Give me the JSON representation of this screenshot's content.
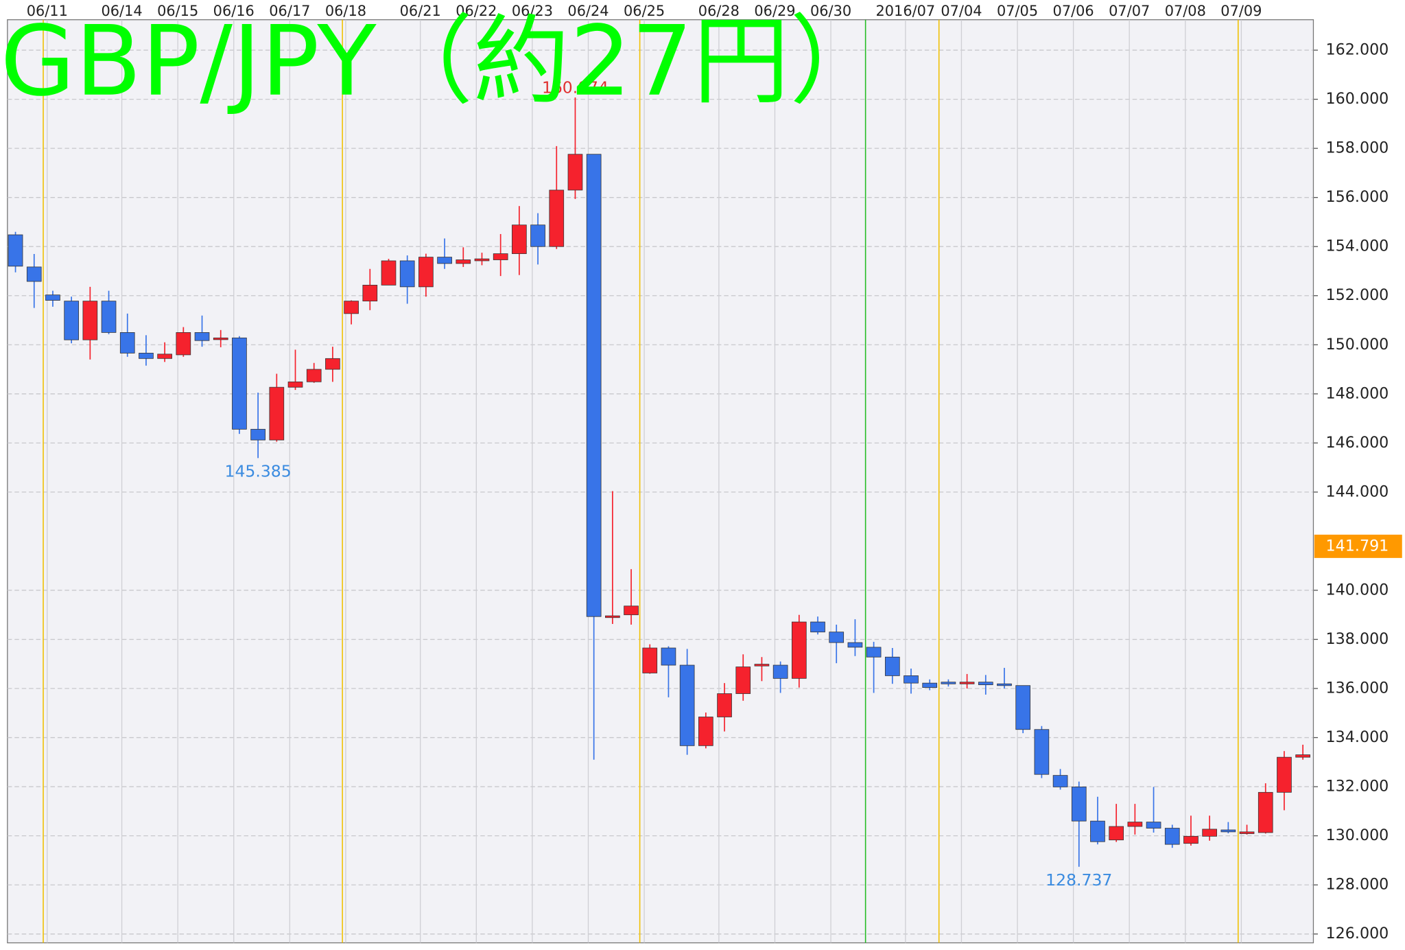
{
  "chart_data": {
    "type": "candlestick",
    "title": "GBP/JPY（約27円）",
    "categories": [
      null,
      "06/11",
      null,
      null,
      null,
      "06/14",
      null,
      null,
      "06/15",
      null,
      null,
      "06/16",
      null,
      null,
      "06/17",
      null,
      null,
      "06/18",
      null,
      null,
      null,
      "06/21",
      null,
      null,
      "06/22",
      null,
      null,
      "06/23",
      null,
      null,
      "06/24",
      null,
      null,
      "06/25",
      null,
      null,
      null,
      "06/28",
      null,
      null,
      "06/29",
      null,
      null,
      "06/30",
      null,
      null,
      null,
      "2016/07",
      null,
      null,
      "07/04",
      null,
      null,
      "07/05",
      null,
      null,
      "07/06",
      null,
      null,
      "07/07",
      null,
      null,
      "07/08",
      null,
      null,
      "07/09",
      null,
      null,
      null,
      null
    ],
    "open": [
      154.48,
      153.17,
      152.03,
      151.78,
      150.2,
      151.78,
      150.5,
      149.66,
      149.44,
      149.59,
      150.5,
      150.21,
      150.28,
      146.56,
      146.12,
      148.27,
      148.49,
      149.0,
      151.27,
      151.78,
      152.43,
      153.42,
      152.36,
      153.57,
      153.31,
      153.42,
      153.46,
      153.71,
      154.88,
      154.0,
      156.3,
      157.76,
      138.93,
      139.0,
      136.63,
      137.65,
      136.95,
      133.67,
      134.84,
      135.79,
      136.92,
      136.95,
      136.41,
      138.71,
      138.3,
      137.87,
      137.68,
      137.28,
      136.52,
      136.22,
      136.26,
      136.22,
      136.26,
      136.19,
      136.12,
      134.33,
      132.46,
      131.99,
      130.6,
      129.83,
      130.38,
      130.56,
      130.31,
      129.69,
      129.98,
      130.24,
      130.09,
      130.13,
      131.77,
      133.2
    ],
    "high": [
      154.6,
      153.7,
      152.2,
      151.96,
      152.36,
      152.2,
      151.27,
      150.39,
      150.1,
      150.72,
      151.19,
      150.6,
      150.35,
      148.05,
      148.82,
      149.8,
      149.26,
      149.92,
      151.81,
      153.09,
      153.5,
      153.64,
      153.71,
      154.33,
      153.97,
      153.75,
      154.51,
      155.65,
      155.36,
      158.09,
      160.074,
      157.76,
      144.04,
      140.86,
      137.8,
      137.72,
      137.61,
      135.02,
      136.22,
      137.39,
      137.28,
      137.1,
      139.0,
      138.93,
      138.6,
      138.82,
      137.9,
      137.65,
      136.81,
      136.37,
      136.37,
      136.59,
      136.55,
      136.84,
      136.12,
      134.47,
      132.72,
      132.21,
      131.59,
      131.3,
      131.3,
      131.99,
      130.45,
      130.82,
      130.82,
      130.56,
      130.45,
      132.14,
      133.45,
      133.71
    ],
    "low": [
      152.95,
      151.5,
      151.55,
      150.06,
      149.4,
      150.43,
      149.51,
      149.15,
      149.3,
      149.51,
      149.92,
      149.9,
      146.37,
      145.385,
      146.05,
      148.16,
      148.45,
      148.49,
      150.83,
      151.41,
      152.43,
      151.67,
      151.96,
      153.09,
      153.17,
      153.24,
      152.8,
      152.84,
      153.27,
      153.9,
      155.94,
      133.1,
      138.63,
      138.6,
      136.6,
      135.64,
      133.3,
      133.56,
      134.25,
      135.5,
      136.3,
      135.82,
      136.04,
      138.2,
      137.03,
      137.32,
      135.82,
      136.19,
      135.79,
      135.93,
      136.08,
      136.0,
      135.75,
      136.0,
      134.18,
      132.35,
      131.88,
      128.737,
      129.65,
      129.75,
      130.05,
      130.13,
      129.51,
      129.6,
      129.8,
      130.1,
      130.05,
      130.09,
      131.04,
      133.1
    ],
    "close": [
      153.2,
      152.58,
      151.81,
      150.2,
      151.78,
      150.5,
      149.66,
      149.44,
      149.62,
      150.5,
      150.17,
      150.28,
      146.56,
      146.12,
      148.27,
      148.49,
      149.0,
      149.44,
      151.78,
      152.43,
      153.42,
      152.36,
      153.57,
      153.31,
      153.46,
      153.5,
      153.71,
      154.88,
      154.0,
      156.3,
      157.76,
      138.93,
      138.96,
      139.36,
      137.65,
      136.95,
      133.67,
      134.84,
      135.79,
      136.88,
      136.99,
      136.41,
      138.71,
      138.3,
      137.87,
      137.68,
      137.28,
      136.52,
      136.22,
      136.04,
      136.22,
      136.26,
      136.15,
      136.12,
      134.33,
      132.5,
      131.99,
      130.6,
      129.76,
      130.38,
      130.56,
      130.31,
      129.65,
      129.98,
      130.27,
      130.16,
      130.16,
      131.77,
      133.2,
      133.3
    ],
    "up_color": "#f5222d",
    "down_color": "#3874e8",
    "title_color": "#00ff00",
    "last_price": 141.791,
    "last_price_color": "#ff9900",
    "ylim": [
      125.64,
      163.24
    ],
    "yticks": [
      {
        "value": 126,
        "label": "126.000"
      },
      {
        "value": 128,
        "label": "128.000"
      },
      {
        "value": 130,
        "label": "130.000"
      },
      {
        "value": 132,
        "label": "132.000"
      },
      {
        "value": 134,
        "label": "134.000"
      },
      {
        "value": 136,
        "label": "136.000"
      },
      {
        "value": 138,
        "label": "138.000"
      },
      {
        "value": 140,
        "label": "140.000"
      },
      {
        "value": 144,
        "label": "144.000"
      },
      {
        "value": 146,
        "label": "146.000"
      },
      {
        "value": 148,
        "label": "148.000"
      },
      {
        "value": 150,
        "label": "150.000"
      },
      {
        "value": 152,
        "label": "152.000"
      },
      {
        "value": 154,
        "label": "154.000"
      },
      {
        "value": 156,
        "label": "156.000"
      },
      {
        "value": 158,
        "label": "158.000"
      },
      {
        "value": 160,
        "label": "160.000"
      },
      {
        "value": 162,
        "label": "162.000"
      }
    ],
    "grid": true
  }
}
